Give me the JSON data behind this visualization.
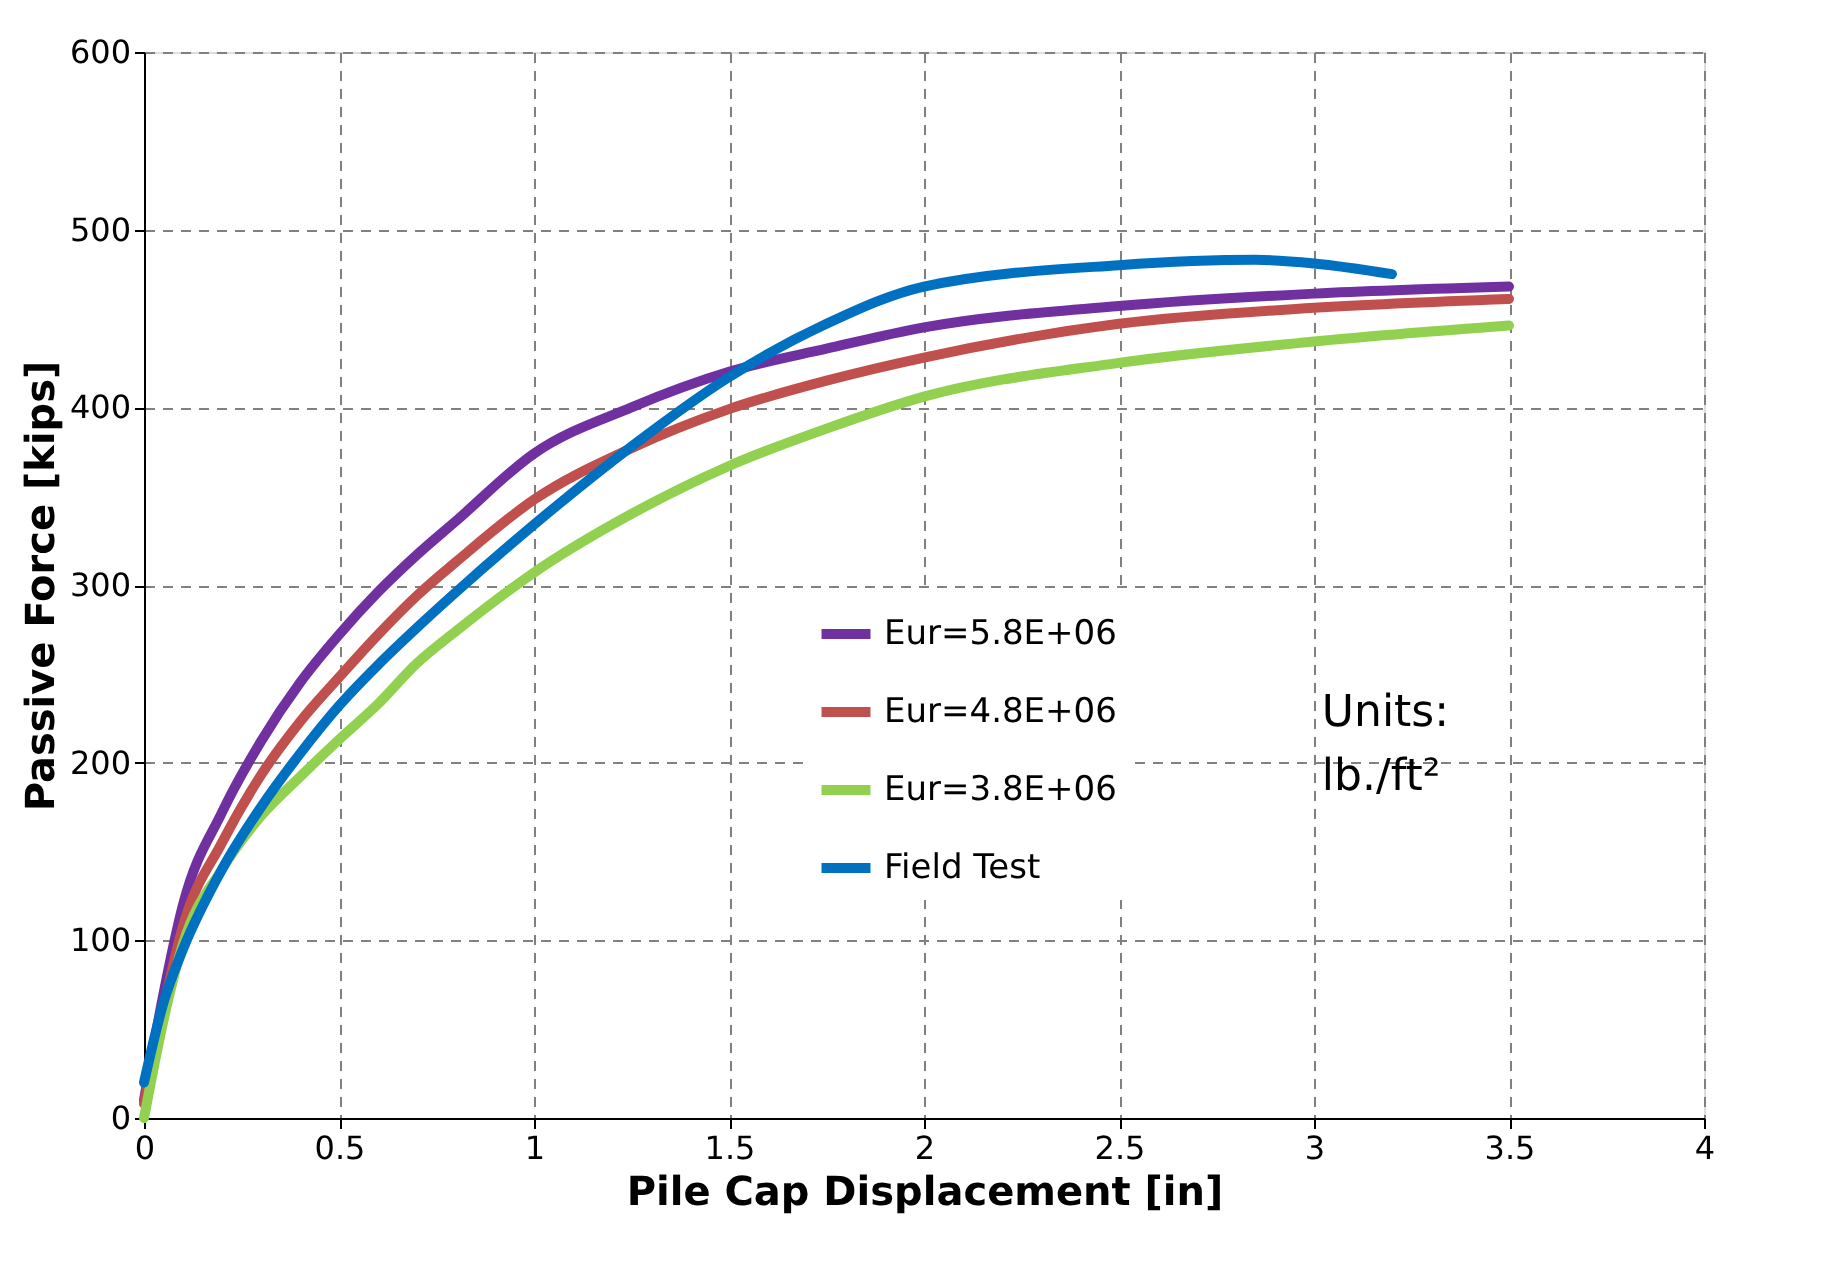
{
  "chart_data": {
    "type": "line",
    "xlabel": "Pile Cap Displacement [in]",
    "ylabel": "Passive Force [kips]",
    "xlim": [
      0,
      4
    ],
    "xticks": [
      0,
      0.5,
      1,
      1.5,
      2,
      2.5,
      3,
      3.5,
      4
    ],
    "ylim": [
      0,
      600
    ],
    "yticks": [
      0,
      100,
      200,
      300,
      400,
      500,
      600
    ],
    "grid": true,
    "legend": "right",
    "marker": "none",
    "line_style": "solid",
    "annotations": [
      "Units:\nlb./ft²"
    ],
    "series": [
      {
        "name": "Eur=5.8E+06",
        "color": "#7030a0",
        "x": [
          0,
          0.05,
          0.1,
          0.2,
          0.3,
          0.4,
          0.5,
          0.6,
          0.7,
          0.8,
          1,
          1.25,
          1.5,
          1.75,
          2,
          2.5,
          3,
          3.5
        ],
        "values": [
          10,
          70,
          120,
          172,
          212,
          245,
          272,
          296,
          317,
          336,
          374,
          400,
          420,
          433,
          445,
          457,
          464,
          468
        ]
      },
      {
        "name": "Eur=4.8E+06",
        "color": "#c0504d",
        "x": [
          0,
          0.05,
          0.1,
          0.2,
          0.3,
          0.4,
          0.5,
          0.6,
          0.7,
          0.8,
          1,
          1.25,
          1.5,
          1.75,
          2,
          2.5,
          3,
          3.5
        ],
        "values": [
          8,
          62,
          108,
          155,
          193,
          223,
          248,
          272,
          294,
          313,
          348,
          377,
          399,
          415,
          428,
          447,
          456,
          461
        ]
      },
      {
        "name": "Eur=3.8E+06",
        "color": "#92d050",
        "x": [
          0,
          0.05,
          0.1,
          0.2,
          0.3,
          0.4,
          0.5,
          0.6,
          0.7,
          0.8,
          1,
          1.25,
          1.5,
          1.75,
          2,
          2.5,
          3,
          3.5
        ],
        "values": [
          0,
          55,
          98,
          140,
          170,
          192,
          213,
          233,
          256,
          274,
          307,
          340,
          367,
          388,
          406,
          425,
          437,
          446
        ]
      },
      {
        "name": "Field Test",
        "color": "#0070c0",
        "x": [
          0,
          0.05,
          0.1,
          0.2,
          0.3,
          0.4,
          0.5,
          0.6,
          0.7,
          0.8,
          1,
          1.25,
          1.5,
          1.75,
          2,
          2.5,
          2.85,
          3,
          3.2
        ],
        "values": [
          20,
          65,
          95,
          140,
          175,
          205,
          232,
          255,
          276,
          296,
          334,
          378,
          417,
          447,
          468,
          480,
          483,
          481,
          475
        ]
      }
    ]
  }
}
